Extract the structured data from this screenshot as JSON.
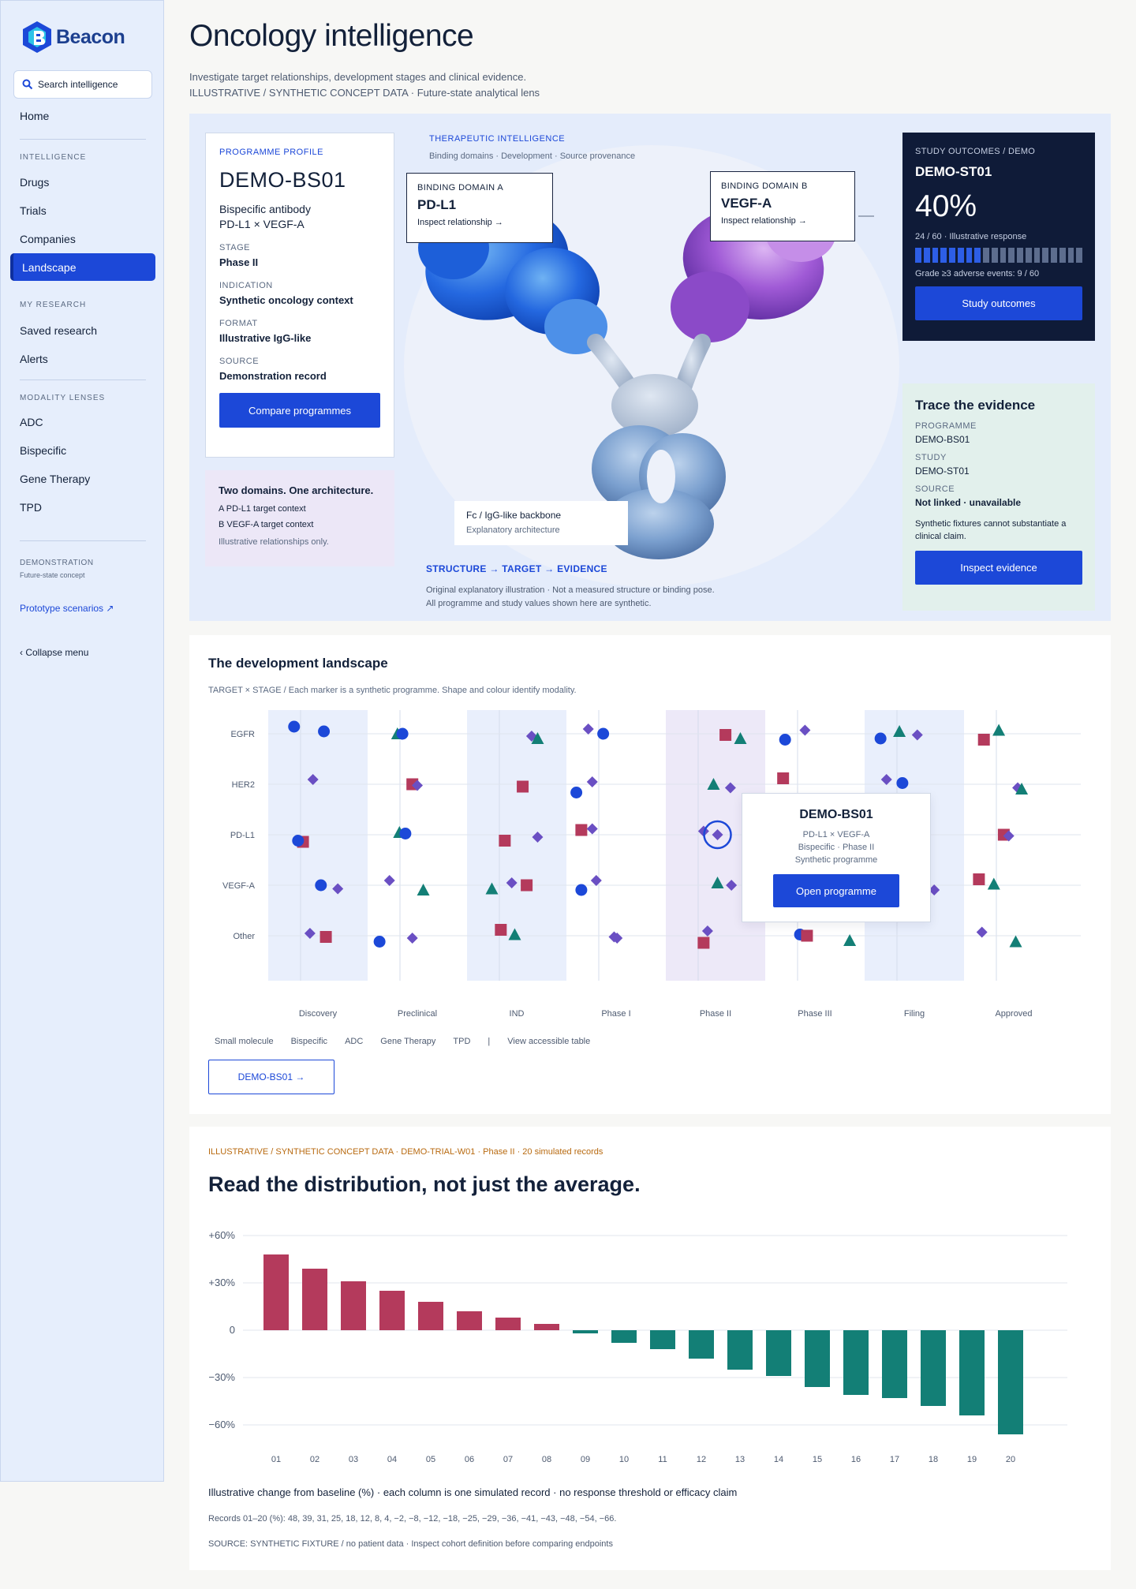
{
  "brand": {
    "name": "Beacon"
  },
  "sidebar": {
    "search_placeholder": "Search intelligence",
    "home": "Home",
    "section_intelligence": "INTELLIGENCE",
    "intelligence_items": [
      "Drugs",
      "Trials",
      "Companies",
      "Landscape"
    ],
    "section_research": "MY RESEARCH",
    "research_items": [
      "Saved research",
      "Alerts"
    ],
    "section_modality": "MODALITY LENSES",
    "modality_items": [
      "ADC",
      "Bispecific",
      "Gene Therapy",
      "TPD"
    ],
    "demo_label": "DEMONSTRATION",
    "demo_sub": "Future-state concept",
    "prototype": "Prototype scenarios ↗",
    "collapse": "‹  Collapse menu"
  },
  "header": {
    "title": "Oncology intelligence",
    "sub1": "Investigate target relationships, development stages and clinical evidence.",
    "sub2": "ILLUSTRATIVE / SYNTHETIC CONCEPT DATA · Future-state analytical lens"
  },
  "profile": {
    "kicker": "PROGRAMME PROFILE",
    "code": "DEMO-BS01",
    "desc1": "Bispecific antibody",
    "desc2": "PD-L1 × VEGF-A",
    "stage_label": "STAGE",
    "stage": "Phase II",
    "indication_label": "INDICATION",
    "indication": "Synthetic oncology context",
    "format_label": "FORMAT",
    "format": "Illustrative IgG-like",
    "source_label": "SOURCE",
    "source": "Demonstration record",
    "button": "Compare programmes"
  },
  "two_domains": {
    "title": "Two domains. One architecture.",
    "row_a": "A  PD-L1 target context",
    "row_b": "B  VEGF-A target context",
    "note": "Illustrative relationships only."
  },
  "therapeutic": {
    "kicker": "THERAPEUTIC INTELLIGENCE",
    "sub": "Binding domains · Development · Source provenance",
    "domain_a": {
      "kicker": "BINDING DOMAIN A",
      "value": "PD-L1",
      "link": "Inspect relationship →"
    },
    "domain_b": {
      "kicker": "BINDING DOMAIN B",
      "value": "VEGF-A",
      "link": "Inspect relationship →"
    },
    "fc": {
      "value": "Fc / IgG-like backbone",
      "sub": "Explanatory architecture"
    },
    "chain": "STRUCTURE → TARGET → EVIDENCE",
    "note1": "Original explanatory illustration · Not a measured structure or binding pose.",
    "note2": "All programme and study values shown here are synthetic."
  },
  "outcomes": {
    "kicker": "STUDY OUTCOMES / DEMO",
    "code": "DEMO-ST01",
    "percent": "40%",
    "response": "24 / 60 · Illustrative response",
    "responders": 24,
    "total": 60,
    "adverse": "Grade ≥3 adverse events: 9 / 60",
    "button": "Study outcomes"
  },
  "trace": {
    "title": "Trace the evidence",
    "programme_label": "PROGRAMME",
    "programme": "DEMO-BS01",
    "study_label": "STUDY",
    "study": "DEMO-ST01",
    "source_label": "SOURCE",
    "source": "Not linked · unavailable",
    "note": "Synthetic fixtures cannot substantiate a clinical claim.",
    "button": "Inspect evidence"
  },
  "landscape": {
    "title": "The development landscape",
    "sub": "TARGET × STAGE   /   Each marker is a synthetic programme. Shape and colour identify modality.",
    "legend": [
      "Small molecule",
      "Bispecific",
      "ADC",
      "Gene Therapy",
      "TPD",
      "|",
      "View accessible table"
    ],
    "button": "DEMO-BS01  →",
    "tooltip": {
      "code": "DEMO-BS01",
      "line1": "PD-L1 × VEGF-A",
      "line2": "Bispecific · Phase II",
      "line3": "Synthetic programme",
      "button": "Open programme"
    }
  },
  "chart_data": [
    {
      "type": "scatter",
      "title": "",
      "x_categories": [
        "Discovery",
        "Preclinical",
        "IND",
        "Phase I",
        "Phase II",
        "Phase III",
        "Filing",
        "Approved"
      ],
      "y_categories": [
        "EGFR",
        "HER2",
        "PD-L1",
        "VEGF-A",
        "Other"
      ],
      "modality_colors": {
        "circle": "#1c48d8",
        "diamond": "#6a4fc3",
        "square": "#b43a5c",
        "triangle": "#137f76"
      },
      "highlight_columns": [
        "Discovery",
        "IND",
        "Phase II",
        "Filing"
      ],
      "points": [
        {
          "stage": "Discovery",
          "target": "EGFR",
          "shape": "circle",
          "offset": -0.24,
          "jitter": -0.3
        },
        {
          "stage": "Discovery",
          "target": "EGFR",
          "shape": "circle",
          "offset": 0.06,
          "jitter": -0.1
        },
        {
          "stage": "Discovery",
          "target": "HER2",
          "shape": "diamond",
          "offset": -0.05,
          "jitter": -0.2
        },
        {
          "stage": "Discovery",
          "target": "PD-L1",
          "shape": "square",
          "offset": -0.15,
          "jitter": 0.3
        },
        {
          "stage": "Discovery",
          "target": "PD-L1",
          "shape": "circle",
          "offset": -0.2,
          "jitter": 0.25
        },
        {
          "stage": "Discovery",
          "target": "VEGF-A",
          "shape": "circle",
          "offset": 0.03,
          "jitter": 0
        },
        {
          "stage": "Discovery",
          "target": "VEGF-A",
          "shape": "diamond",
          "offset": 0.2,
          "jitter": 0.15
        },
        {
          "stage": "Discovery",
          "target": "Other",
          "shape": "diamond",
          "offset": -0.08,
          "jitter": -0.1
        },
        {
          "stage": "Discovery",
          "target": "Other",
          "shape": "square",
          "offset": 0.08,
          "jitter": 0.05
        },
        {
          "stage": "Preclinical",
          "target": "EGFR",
          "shape": "triangle",
          "offset": -0.2,
          "jitter": 0
        },
        {
          "stage": "Preclinical",
          "target": "EGFR",
          "shape": "circle",
          "offset": -0.15,
          "jitter": 0
        },
        {
          "stage": "Preclinical",
          "target": "HER2",
          "shape": "square",
          "offset": -0.05,
          "jitter": 0
        },
        {
          "stage": "Preclinical",
          "target": "HER2",
          "shape": "diamond",
          "offset": 0,
          "jitter": 0.05
        },
        {
          "stage": "Preclinical",
          "target": "PD-L1",
          "shape": "triangle",
          "offset": -0.18,
          "jitter": -0.1
        },
        {
          "stage": "Preclinical",
          "target": "PD-L1",
          "shape": "circle",
          "offset": -0.12,
          "jitter": -0.05
        },
        {
          "stage": "Preclinical",
          "target": "VEGF-A",
          "shape": "diamond",
          "offset": -0.28,
          "jitter": -0.2
        },
        {
          "stage": "Preclinical",
          "target": "VEGF-A",
          "shape": "triangle",
          "offset": 0.06,
          "jitter": 0.2
        },
        {
          "stage": "Preclinical",
          "target": "Other",
          "shape": "circle",
          "offset": -0.38,
          "jitter": 0.25
        },
        {
          "stage": "Preclinical",
          "target": "Other",
          "shape": "diamond",
          "offset": -0.05,
          "jitter": 0.1
        },
        {
          "stage": "IND",
          "target": "EGFR",
          "shape": "diamond",
          "offset": 0.15,
          "jitter": 0.1
        },
        {
          "stage": "IND",
          "target": "EGFR",
          "shape": "triangle",
          "offset": 0.21,
          "jitter": 0.2
        },
        {
          "stage": "IND",
          "target": "HER2",
          "shape": "square",
          "offset": 0.06,
          "jitter": 0.1
        },
        {
          "stage": "IND",
          "target": "PD-L1",
          "shape": "square",
          "offset": -0.12,
          "jitter": 0.25
        },
        {
          "stage": "IND",
          "target": "PD-L1",
          "shape": "diamond",
          "offset": 0.21,
          "jitter": 0.1
        },
        {
          "stage": "IND",
          "target": "VEGF-A",
          "shape": "diamond",
          "offset": -0.05,
          "jitter": -0.1
        },
        {
          "stage": "IND",
          "target": "VEGF-A",
          "shape": "square",
          "offset": 0.1,
          "jitter": 0
        },
        {
          "stage": "IND",
          "target": "VEGF-A",
          "shape": "triangle",
          "offset": -0.25,
          "jitter": 0.15
        },
        {
          "stage": "IND",
          "target": "Other",
          "shape": "square",
          "offset": -0.16,
          "jitter": -0.25
        },
        {
          "stage": "IND",
          "target": "Other",
          "shape": "triangle",
          "offset": -0.02,
          "jitter": -0.05
        },
        {
          "stage": "Phase I",
          "target": "EGFR",
          "shape": "diamond",
          "offset": -0.28,
          "jitter": -0.2
        },
        {
          "stage": "Phase I",
          "target": "EGFR",
          "shape": "circle",
          "offset": -0.13,
          "jitter": 0
        },
        {
          "stage": "Phase I",
          "target": "HER2",
          "shape": "diamond",
          "offset": -0.24,
          "jitter": -0.1
        },
        {
          "stage": "Phase I",
          "target": "HER2",
          "shape": "circle",
          "offset": -0.4,
          "jitter": 0.35
        },
        {
          "stage": "Phase I",
          "target": "PD-L1",
          "shape": "square",
          "offset": -0.35,
          "jitter": -0.2
        },
        {
          "stage": "Phase I",
          "target": "PD-L1",
          "shape": "diamond",
          "offset": -0.24,
          "jitter": -0.25
        },
        {
          "stage": "Phase I",
          "target": "VEGF-A",
          "shape": "diamond",
          "offset": -0.2,
          "jitter": -0.2
        },
        {
          "stage": "Phase I",
          "target": "VEGF-A",
          "shape": "circle",
          "offset": -0.35,
          "jitter": 0.2
        },
        {
          "stage": "Phase I",
          "target": "Other",
          "shape": "diamond",
          "offset": -0.02,
          "jitter": 0.05
        },
        {
          "stage": "Phase I",
          "target": "Other",
          "shape": "diamond",
          "offset": 0.01,
          "jitter": 0.1
        },
        {
          "stage": "Phase II",
          "target": "EGFR",
          "shape": "square",
          "offset": 0.1,
          "jitter": 0.05
        },
        {
          "stage": "Phase II",
          "target": "EGFR",
          "shape": "triangle",
          "offset": 0.25,
          "jitter": 0.2
        },
        {
          "stage": "Phase II",
          "target": "HER2",
          "shape": "triangle",
          "offset": -0.02,
          "jitter": 0
        },
        {
          "stage": "Phase II",
          "target": "HER2",
          "shape": "diamond",
          "offset": 0.15,
          "jitter": 0.15
        },
        {
          "stage": "Phase II",
          "target": "PD-L1",
          "shape": "diamond",
          "offset": -0.12,
          "jitter": -0.15
        },
        {
          "stage": "Phase II",
          "target": "PD-L1",
          "shape": "diamond",
          "offset": 0.02,
          "jitter": 0,
          "highlight": true
        },
        {
          "stage": "Phase II",
          "target": "VEGF-A",
          "shape": "triangle",
          "offset": 0.02,
          "jitter": -0.1
        },
        {
          "stage": "Phase II",
          "target": "VEGF-A",
          "shape": "diamond",
          "offset": 0.16,
          "jitter": 0
        },
        {
          "stage": "Phase II",
          "target": "Other",
          "shape": "diamond",
          "offset": -0.08,
          "jitter": -0.2
        },
        {
          "stage": "Phase II",
          "target": "Other",
          "shape": "square",
          "offset": -0.12,
          "jitter": 0.3
        },
        {
          "stage": "Phase III",
          "target": "EGFR",
          "shape": "circle",
          "offset": -0.3,
          "jitter": 0.25
        },
        {
          "stage": "Phase III",
          "target": "EGFR",
          "shape": "diamond",
          "offset": -0.1,
          "jitter": -0.15
        },
        {
          "stage": "Phase III",
          "target": "HER2",
          "shape": "square",
          "offset": -0.32,
          "jitter": -0.25
        },
        {
          "stage": "Phase III",
          "target": "Other",
          "shape": "circle",
          "offset": -0.15,
          "jitter": -0.05
        },
        {
          "stage": "Phase III",
          "target": "Other",
          "shape": "square",
          "offset": -0.08,
          "jitter": 0
        },
        {
          "stage": "Filing",
          "target": "EGFR",
          "shape": "circle",
          "offset": -0.34,
          "jitter": 0.2
        },
        {
          "stage": "Filing",
          "target": "EGFR",
          "shape": "triangle",
          "offset": -0.15,
          "jitter": -0.1
        },
        {
          "stage": "Filing",
          "target": "EGFR",
          "shape": "diamond",
          "offset": 0.03,
          "jitter": 0.05
        },
        {
          "stage": "Filing",
          "target": "HER2",
          "shape": "diamond",
          "offset": -0.28,
          "jitter": -0.2
        },
        {
          "stage": "Filing",
          "target": "HER2",
          "shape": "circle",
          "offset": -0.12,
          "jitter": -0.05
        },
        {
          "stage": "Filing",
          "target": "VEGF-A",
          "shape": "diamond",
          "offset": 0.2,
          "jitter": 0.2
        },
        {
          "stage": "Filing",
          "target": "Other",
          "shape": "triangle",
          "offset": -0.65,
          "jitter": 0.2
        },
        {
          "stage": "Approved",
          "target": "EGFR",
          "shape": "square",
          "offset": -0.3,
          "jitter": 0.25
        },
        {
          "stage": "Approved",
          "target": "EGFR",
          "shape": "triangle",
          "offset": -0.15,
          "jitter": -0.15
        },
        {
          "stage": "Approved",
          "target": "HER2",
          "shape": "diamond",
          "offset": 0.04,
          "jitter": 0.15
        },
        {
          "stage": "Approved",
          "target": "HER2",
          "shape": "triangle",
          "offset": 0.08,
          "jitter": 0.2
        },
        {
          "stage": "Approved",
          "target": "PD-L1",
          "shape": "square",
          "offset": -0.1,
          "jitter": 0
        },
        {
          "stage": "Approved",
          "target": "PD-L1",
          "shape": "diamond",
          "offset": -0.05,
          "jitter": 0.05
        },
        {
          "stage": "Approved",
          "target": "VEGF-A",
          "shape": "square",
          "offset": -0.35,
          "jitter": -0.25
        },
        {
          "stage": "Approved",
          "target": "VEGF-A",
          "shape": "triangle",
          "offset": -0.2,
          "jitter": -0.05
        },
        {
          "stage": "Approved",
          "target": "Other",
          "shape": "diamond",
          "offset": -0.32,
          "jitter": -0.15
        },
        {
          "stage": "Approved",
          "target": "Other",
          "shape": "triangle",
          "offset": 0.02,
          "jitter": 0.25
        }
      ]
    },
    {
      "type": "bar",
      "title": "",
      "categories": [
        "01",
        "02",
        "03",
        "04",
        "05",
        "06",
        "07",
        "08",
        "09",
        "10",
        "11",
        "12",
        "13",
        "14",
        "15",
        "16",
        "17",
        "18",
        "19",
        "20"
      ],
      "values": [
        48,
        39,
        31,
        25,
        18,
        12,
        8,
        4,
        -2,
        -8,
        -12,
        -18,
        -25,
        -29,
        -36,
        -41,
        -43,
        -48,
        -54,
        -66
      ],
      "ylim": [
        -60,
        60
      ],
      "yticks": [
        "+60%",
        "+30%",
        "0",
        "−30%",
        "−60%"
      ],
      "ytick_values": [
        60,
        30,
        0,
        -30,
        -60
      ],
      "positive_color": "#b43a5c",
      "negative_color": "#137f76"
    }
  ],
  "distribution": {
    "kicker": "ILLUSTRATIVE / SYNTHETIC CONCEPT DATA · DEMO-TRIAL-W01 · Phase II · 20 simulated records",
    "title": "Read the distribution, not just the average.",
    "caption": "Illustrative change from baseline (%) · each column is one simulated record · no response threshold or efficacy claim",
    "records": "Records 01–20 (%): 48, 39, 31, 25, 18, 12, 8, 4, −2, −8, −12, −18, −25, −29, −36, −41, −43, −48, −54, −66.",
    "source": "SOURCE: SYNTHETIC FIXTURE / no patient data · Inspect cohort definition before comparing endpoints"
  }
}
